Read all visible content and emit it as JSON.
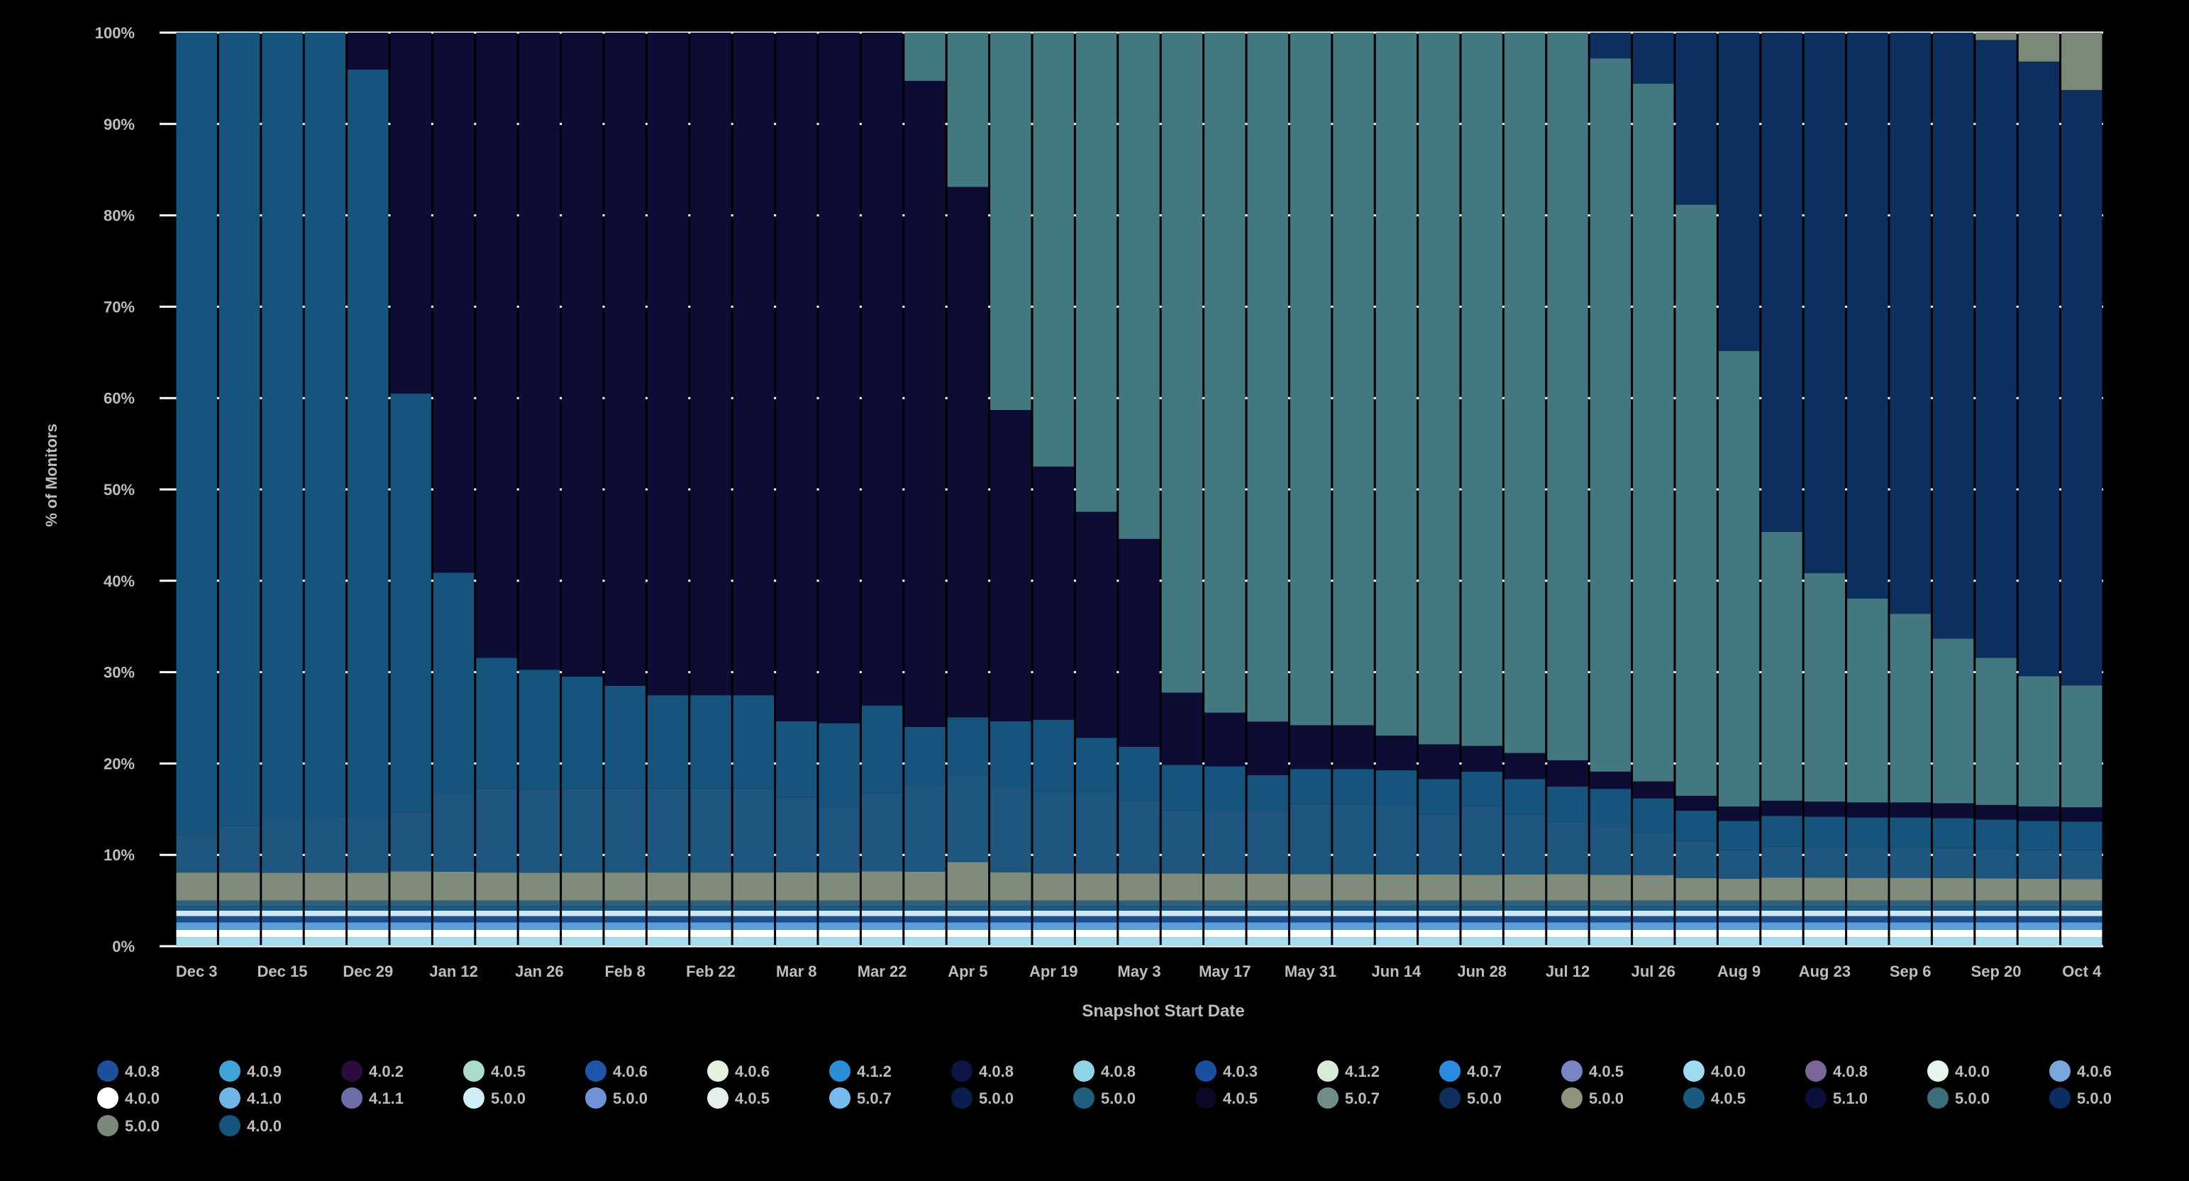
{
  "chart_data": {
    "type": "bar",
    "stacked": true,
    "normalized": true,
    "title": "",
    "xlabel": "Snapshot Start Date",
    "ylabel": "% of Monitors",
    "ylim": [
      0,
      100
    ],
    "yticks": [
      "0%",
      "10%",
      "20%",
      "30%",
      "40%",
      "50%",
      "60%",
      "70%",
      "80%",
      "90%",
      "100%"
    ],
    "grid": true,
    "legend_position": "bottom",
    "x_tick_labels": [
      "Dec 3",
      "Dec 15",
      "Dec 29",
      "Jan 12",
      "Jan 26",
      "Feb 8",
      "Feb 22",
      "Mar 8",
      "Mar 22",
      "Apr 5",
      "Apr 19",
      "May 3",
      "May 17",
      "May 31",
      "Jun 14",
      "Jun 28",
      "Jul 12",
      "Jul 26",
      "Aug 9",
      "Aug 23",
      "Sep 6",
      "Sep 20",
      "Oct 4"
    ],
    "categories": [
      "Dec 3",
      "Dec 9",
      "Dec 15",
      "Dec 22",
      "Dec 29",
      "Jan 5",
      "Jan 12",
      "Jan 19",
      "Jan 26",
      "Feb 1",
      "Feb 8",
      "Feb 15",
      "Feb 22",
      "Mar 1",
      "Mar 8",
      "Mar 15",
      "Mar 22",
      "Mar 29",
      "Apr 5",
      "Apr 12",
      "Apr 19",
      "Apr 26",
      "May 3",
      "May 10",
      "May 17",
      "May 24",
      "May 31",
      "Jun 7",
      "Jun 14",
      "Jun 21",
      "Jun 28",
      "Jul 5",
      "Jul 12",
      "Jul 19",
      "Jul 26",
      "Aug 2",
      "Aug 9",
      "Aug 16",
      "Aug 23",
      "Aug 30",
      "Sep 6",
      "Sep 13",
      "Sep 20",
      "Sep 27",
      "Oct 4"
    ],
    "minor_series_colors": [
      "#a8dcef",
      "#ffffff",
      "#5b9fd8",
      "#1e4f8c",
      "#cfeaf5",
      "#1a5a86",
      "#2f5f7a"
    ],
    "minor_series_values": [
      1.0,
      0.8,
      0.8,
      0.7,
      0.6,
      0.5,
      0.6
    ],
    "series": [
      {
        "color": "#7f8c7c",
        "values": [
          3,
          3,
          3,
          3,
          3,
          3,
          3,
          3,
          3,
          3,
          3,
          3,
          3,
          3,
          3,
          3,
          3,
          3,
          4,
          3,
          3,
          3,
          3,
          3,
          3,
          3,
          3,
          3,
          3,
          3,
          3,
          3,
          3,
          3,
          3,
          3,
          3,
          3,
          3,
          3,
          3,
          3,
          3,
          3,
          3
        ]
      },
      {
        "color": "#1e5680",
        "values": [
          4,
          5,
          6,
          6,
          6,
          6,
          8,
          9,
          9,
          9,
          9,
          9,
          9,
          9,
          8,
          7,
          8,
          9,
          9,
          9,
          9,
          9,
          8,
          7,
          7,
          7,
          8,
          8,
          8,
          7,
          8,
          7,
          6,
          6,
          5,
          5,
          4,
          4,
          4,
          4,
          4,
          4,
          4,
          4,
          4
        ]
      },
      {
        "color": "#17547d",
        "values": [
          86,
          85,
          85,
          85,
          81,
          43,
          23,
          14,
          13,
          12,
          11,
          10,
          10,
          10,
          8,
          9,
          9,
          6,
          6,
          7,
          8,
          6,
          6,
          5,
          5,
          4,
          4,
          4,
          4,
          4,
          4,
          4,
          4,
          4,
          4,
          4,
          4,
          4,
          4,
          4,
          4,
          4,
          4,
          4,
          4
        ]
      },
      {
        "color": "#0d0c35",
        "values": [
          0,
          0,
          0,
          0,
          4,
          37,
          56,
          67,
          69,
          69,
          70,
          71,
          71,
          71,
          73,
          74,
          69,
          67,
          55,
          33,
          28,
          25,
          23,
          8,
          6,
          6,
          5,
          5,
          4,
          4,
          3,
          3,
          3,
          2,
          2,
          2,
          2,
          2,
          2,
          2,
          2,
          2,
          2,
          2,
          2
        ]
      },
      {
        "color": "#437880",
        "values": [
          0,
          0,
          0,
          0,
          0,
          0,
          0,
          0,
          0,
          0,
          0,
          0,
          0,
          0,
          0,
          0,
          0,
          5,
          16,
          40,
          48,
          53,
          56,
          73,
          76,
          77,
          79,
          79,
          81,
          82,
          83,
          83,
          83,
          83,
          82,
          79,
          63,
          35,
          30,
          27,
          25,
          22,
          20,
          18,
          17
        ]
      },
      {
        "color": "#0d2f60",
        "values": [
          0,
          0,
          0,
          0,
          0,
          0,
          0,
          0,
          0,
          0,
          0,
          0,
          0,
          0,
          0,
          0,
          0,
          0,
          0,
          0,
          0,
          0,
          0,
          0,
          0,
          0,
          0,
          0,
          0,
          0,
          0,
          0,
          0,
          3,
          6,
          23,
          44,
          65,
          71,
          75,
          77,
          81,
          84,
          85,
          83
        ]
      },
      {
        "color": "#7a8978",
        "values": [
          0,
          0,
          0,
          0,
          0,
          0,
          0,
          0,
          0,
          0,
          0,
          0,
          0,
          0,
          0,
          0,
          0,
          0,
          0,
          0,
          0,
          0,
          0,
          0,
          0,
          0,
          0,
          0,
          0,
          0,
          0,
          0,
          0,
          0,
          0,
          0,
          0,
          0,
          0,
          0,
          0,
          0,
          1,
          4,
          8
        ]
      }
    ],
    "legend": [
      {
        "label": "4.0.8",
        "color": "#1c4f9c"
      },
      {
        "label": "4.0.9",
        "color": "#3fa3d8"
      },
      {
        "label": "4.0.2",
        "color": "#2a0d3c"
      },
      {
        "label": "4.0.5",
        "color": "#a9dcc9"
      },
      {
        "label": "4.0.6",
        "color": "#1d55a8"
      },
      {
        "label": "4.0.6",
        "color": "#e7f2dc"
      },
      {
        "label": "4.1.2",
        "color": "#2a8ed6"
      },
      {
        "label": "4.0.8",
        "color": "#0d1446"
      },
      {
        "label": "4.0.8",
        "color": "#8fd3e6"
      },
      {
        "label": "4.0.3",
        "color": "#1b4f9e"
      },
      {
        "label": "4.1.2",
        "color": "#d6ecd8"
      },
      {
        "label": "4.0.7",
        "color": "#2b8be0"
      },
      {
        "label": "4.0.5",
        "color": "#7a86c4"
      },
      {
        "label": "4.0.0",
        "color": "#9fdcf1"
      },
      {
        "label": "4.0.8",
        "color": "#7c6699"
      },
      {
        "label": "4.0.0",
        "color": "#e6f4ec"
      },
      {
        "label": "4.0.6",
        "color": "#79a7dd"
      },
      {
        "label": "4.0.0",
        "color": "#ffffff"
      },
      {
        "label": "4.1.0",
        "color": "#6fb6e6"
      },
      {
        "label": "4.1.1",
        "color": "#6b6ea8"
      },
      {
        "label": "5.0.0",
        "color": "#cfeef7"
      },
      {
        "label": "5.0.0",
        "color": "#6f93d6"
      },
      {
        "label": "4.0.5",
        "color": "#e6f0ea"
      },
      {
        "label": "5.0.7",
        "color": "#76b9ea"
      },
      {
        "label": "5.0.0",
        "color": "#0a1d4e"
      },
      {
        "label": "5.0.0",
        "color": "#1e5f7c"
      },
      {
        "label": "4.0.5",
        "color": "#0a0826"
      },
      {
        "label": "5.0.7",
        "color": "#6f8c86"
      },
      {
        "label": "5.0.0",
        "color": "#0f2f5f"
      },
      {
        "label": "5.0.0",
        "color": "#8e947e"
      },
      {
        "label": "4.0.5",
        "color": "#1a5a80"
      },
      {
        "label": "5.1.0",
        "color": "#0b0f3c"
      },
      {
        "label": "5.0.0",
        "color": "#3a6e7a"
      },
      {
        "label": "5.0.0",
        "color": "#0c2d62"
      },
      {
        "label": "5.0.0",
        "color": "#7a887a"
      },
      {
        "label": "4.0.0",
        "color": "#17547d"
      }
    ]
  },
  "colors": {
    "background": "#000000",
    "grid": "#ffffff",
    "text": "#bdbdbd"
  }
}
